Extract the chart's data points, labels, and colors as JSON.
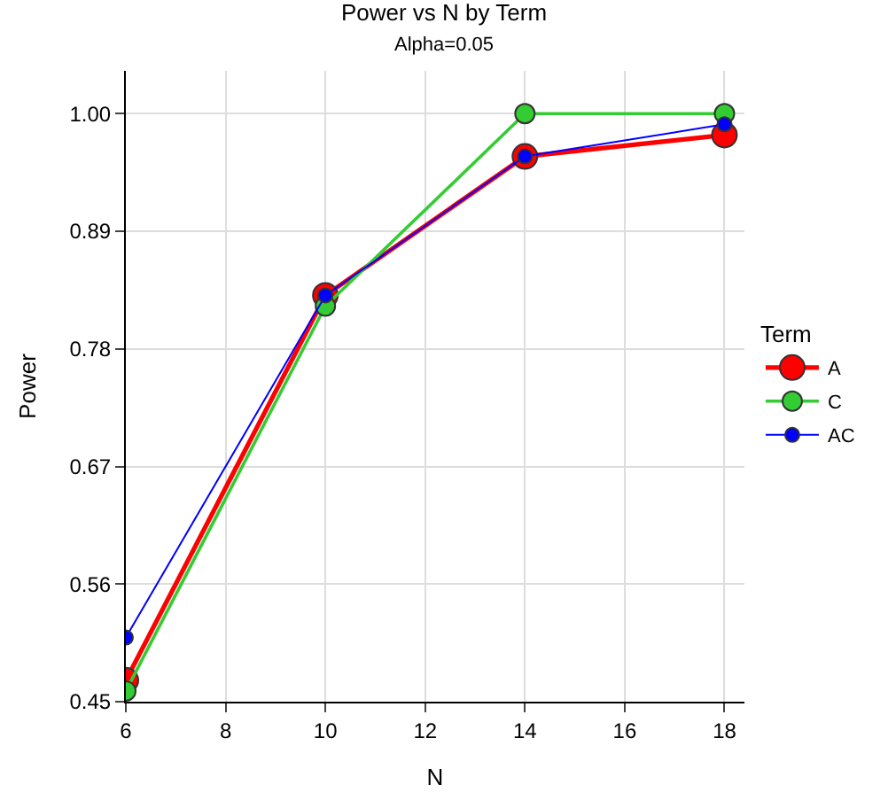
{
  "chart_data": {
    "type": "line",
    "title": "Power vs N by Term",
    "subtitle": "Alpha=0.05",
    "xlabel": "N",
    "ylabel": "Power",
    "legend_title": "Term",
    "x": [
      6,
      10,
      14,
      18
    ],
    "series": [
      {
        "name": "A",
        "color": "#ff0000",
        "values": [
          0.47,
          0.83,
          0.96,
          0.98
        ]
      },
      {
        "name": "C",
        "color": "#33cc33",
        "values": [
          0.46,
          0.82,
          1.0,
          1.0
        ]
      },
      {
        "name": "AC",
        "color": "#0000ff",
        "values": [
          0.51,
          0.83,
          0.96,
          0.99
        ]
      }
    ],
    "xlim": [
      6,
      18.4
    ],
    "xticks": [
      6,
      8,
      10,
      12,
      14,
      16,
      18
    ],
    "ylim": [
      0.45,
      1.04
    ],
    "yticks": [
      {
        "value": 0.45,
        "label": "0.45"
      },
      {
        "value": 0.56,
        "label": "0.56"
      },
      {
        "value": 0.67,
        "label": "0.67"
      },
      {
        "value": 0.78,
        "label": "0.78"
      },
      {
        "value": 0.89,
        "label": "0.89"
      },
      {
        "value": 1.0,
        "label": "1.00"
      }
    ],
    "grid": true,
    "legend": "right",
    "marker": "circle",
    "line_style": "solid"
  }
}
